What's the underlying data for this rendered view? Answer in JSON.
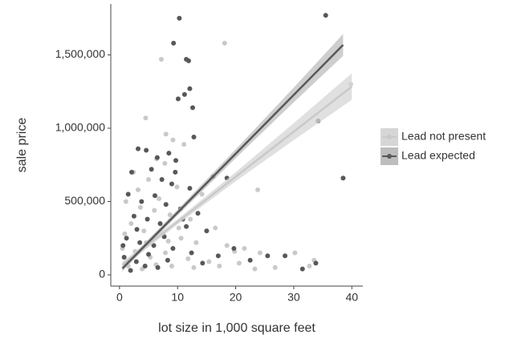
{
  "chart_data": {
    "type": "scatter",
    "x_label": "lot size in 1,000 square feet",
    "y_label": "sale price",
    "xlim": [
      -1.5,
      41.9
    ],
    "ylim": [
      -76500,
      1847000
    ],
    "xticks": [
      0,
      10,
      20,
      30,
      40
    ],
    "yticks": [
      0,
      {
        "value": 500000,
        "label": "500,000"
      },
      {
        "value": 1000000,
        "label": "1,000,000"
      },
      {
        "value": 1500000,
        "label": "1,500,000"
      }
    ],
    "legend": "right",
    "series": [
      {
        "name": "Lead not present",
        "color": "#c9c9c9",
        "band_color": "#d6d6d6",
        "x": [
          7.2,
          18.1,
          39.8,
          4.5,
          23.8,
          8.0,
          9.2,
          11.1,
          6.4,
          7.8,
          2.4,
          5.0,
          9.9,
          14.2,
          1.1,
          3.6,
          6.0,
          8.7,
          12.2,
          16.5,
          2.0,
          4.2,
          7.5,
          10.6,
          13.2,
          18.5,
          0.5,
          2.7,
          5.3,
          7.9,
          11.8,
          15.4,
          19.8,
          21.5,
          24.2,
          26.8,
          30.2,
          32.7,
          33.5,
          1.5,
          3.9,
          6.3,
          9.0,
          12.8,
          17.2,
          20.6,
          23.3,
          0.9,
          4.6,
          8.4,
          10.2,
          6.8,
          3.2
        ],
        "values": [
          1470000,
          1580000,
          1300000,
          1070000,
          580000,
          960000,
          920000,
          890000,
          790000,
          760000,
          700000,
          650000,
          600000,
          550000,
          500000,
          460000,
          440000,
          410000,
          380000,
          320000,
          350000,
          300000,
          280000,
          250000,
          220000,
          200000,
          180000,
          160000,
          120000,
          150000,
          110000,
          90000,
          160000,
          180000,
          150000,
          50000,
          150000,
          60000,
          100000,
          60000,
          40000,
          70000,
          60000,
          50000,
          60000,
          80000,
          40000,
          280000,
          220000,
          230000,
          320000,
          520000,
          580000
        ],
        "fit": {
          "x": [
            0.5,
            40
          ],
          "y": [
            70000,
            1284000
          ]
        },
        "band": {
          "x": [
            0.5,
            10,
            20,
            30,
            40
          ],
          "lower": [
            50000,
            344000,
            638000,
            919000,
            1194000
          ],
          "upper": [
            90000,
            380000,
            700000,
            1035000,
            1374000
          ]
        }
      },
      {
        "name": "Lead expected",
        "color": "#585858",
        "band_color": "#bdbdbd",
        "x": [
          10.3,
          9.3,
          35.5,
          11.5,
          11.9,
          12.1,
          10.1,
          11.2,
          12.6,
          34.2,
          12.8,
          38.5,
          18.5,
          16.1,
          12.1,
          3.2,
          4.6,
          6.5,
          8.5,
          9.7,
          2.1,
          5.5,
          7.3,
          9.0,
          1.5,
          3.8,
          6.1,
          8.0,
          10.5,
          13.5,
          2.5,
          4.8,
          7.0,
          11.5,
          15.0,
          1.2,
          3.5,
          5.9,
          9.2,
          12.4,
          19.7,
          0.8,
          2.9,
          4.4,
          6.6,
          8.3,
          17.0,
          22.5,
          25.5,
          28.5,
          31.5,
          33.8,
          14.3,
          1.9,
          5.0,
          7.7,
          10.9,
          3.0,
          9.6,
          0.6
        ],
        "values": [
          1750000,
          1580000,
          1770000,
          1470000,
          1460000,
          1270000,
          1200000,
          1230000,
          1140000,
          1050000,
          940000,
          660000,
          660000,
          670000,
          590000,
          860000,
          850000,
          800000,
          830000,
          780000,
          700000,
          720000,
          650000,
          620000,
          550000,
          500000,
          540000,
          480000,
          450000,
          420000,
          400000,
          380000,
          350000,
          330000,
          300000,
          250000,
          220000,
          200000,
          180000,
          150000,
          180000,
          120000,
          90000,
          60000,
          50000,
          100000,
          130000,
          100000,
          130000,
          130000,
          40000,
          80000,
          80000,
          30000,
          140000,
          260000,
          380000,
          310000,
          700000,
          200000
        ],
        "fit": {
          "x": [
            0.5,
            38.5
          ],
          "y": [
            44000,
            1568000
          ]
        },
        "band": {
          "x": [
            0.5,
            10,
            20,
            30,
            38.5
          ],
          "lower": [
            24000,
            405000,
            796000,
            1177000,
            1493000
          ],
          "upper": [
            64000,
            445000,
            856000,
            1277000,
            1643000
          ]
        }
      }
    ]
  }
}
